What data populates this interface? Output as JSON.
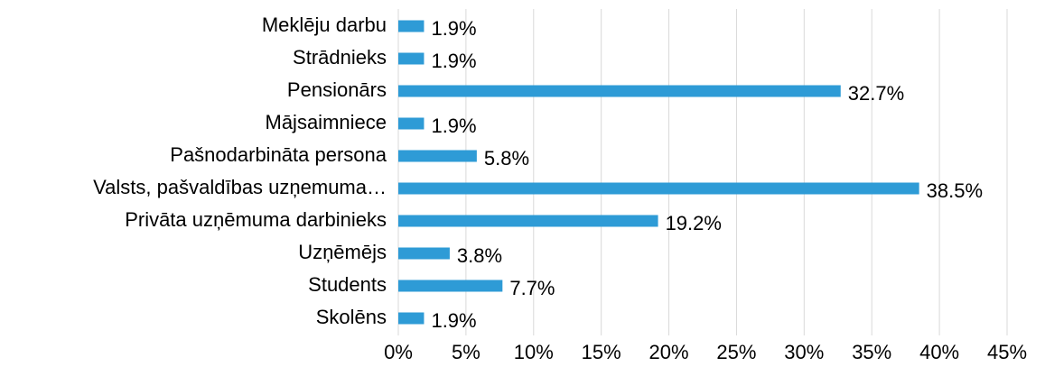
{
  "chart_data": {
    "type": "barh",
    "categories": [
      "Meklēju darbu",
      "Strādnieks",
      "Pensionārs",
      "Mājsaimniece",
      "Pašnodarbināta persona",
      "Valsts, pašvaldības uzņemuma…",
      "Privāta uzņēmuma darbinieks",
      "Uzņēmējs",
      "Students",
      "Skolēns"
    ],
    "values": [
      1.9,
      1.9,
      32.7,
      1.9,
      5.8,
      38.5,
      19.2,
      3.8,
      7.7,
      1.9
    ],
    "value_labels": [
      "1.9%",
      "1.9%",
      "32.7%",
      "1.9%",
      "5.8%",
      "38.5%",
      "19.2%",
      "3.8%",
      "7.7%",
      "1.9%"
    ],
    "color": "#2e9bd6",
    "xlim": [
      0,
      45
    ],
    "xticks": [
      {
        "value": 0,
        "label": "0%"
      },
      {
        "value": 5,
        "label": "5%"
      },
      {
        "value": 10,
        "label": "10%"
      },
      {
        "value": 15,
        "label": "15%"
      },
      {
        "value": 20,
        "label": "20%"
      },
      {
        "value": 25,
        "label": "25%"
      },
      {
        "value": 30,
        "label": "30%"
      },
      {
        "value": 35,
        "label": "35%"
      },
      {
        "value": 40,
        "label": "40%"
      },
      {
        "value": 45,
        "label": "45%"
      }
    ],
    "grid": true
  }
}
